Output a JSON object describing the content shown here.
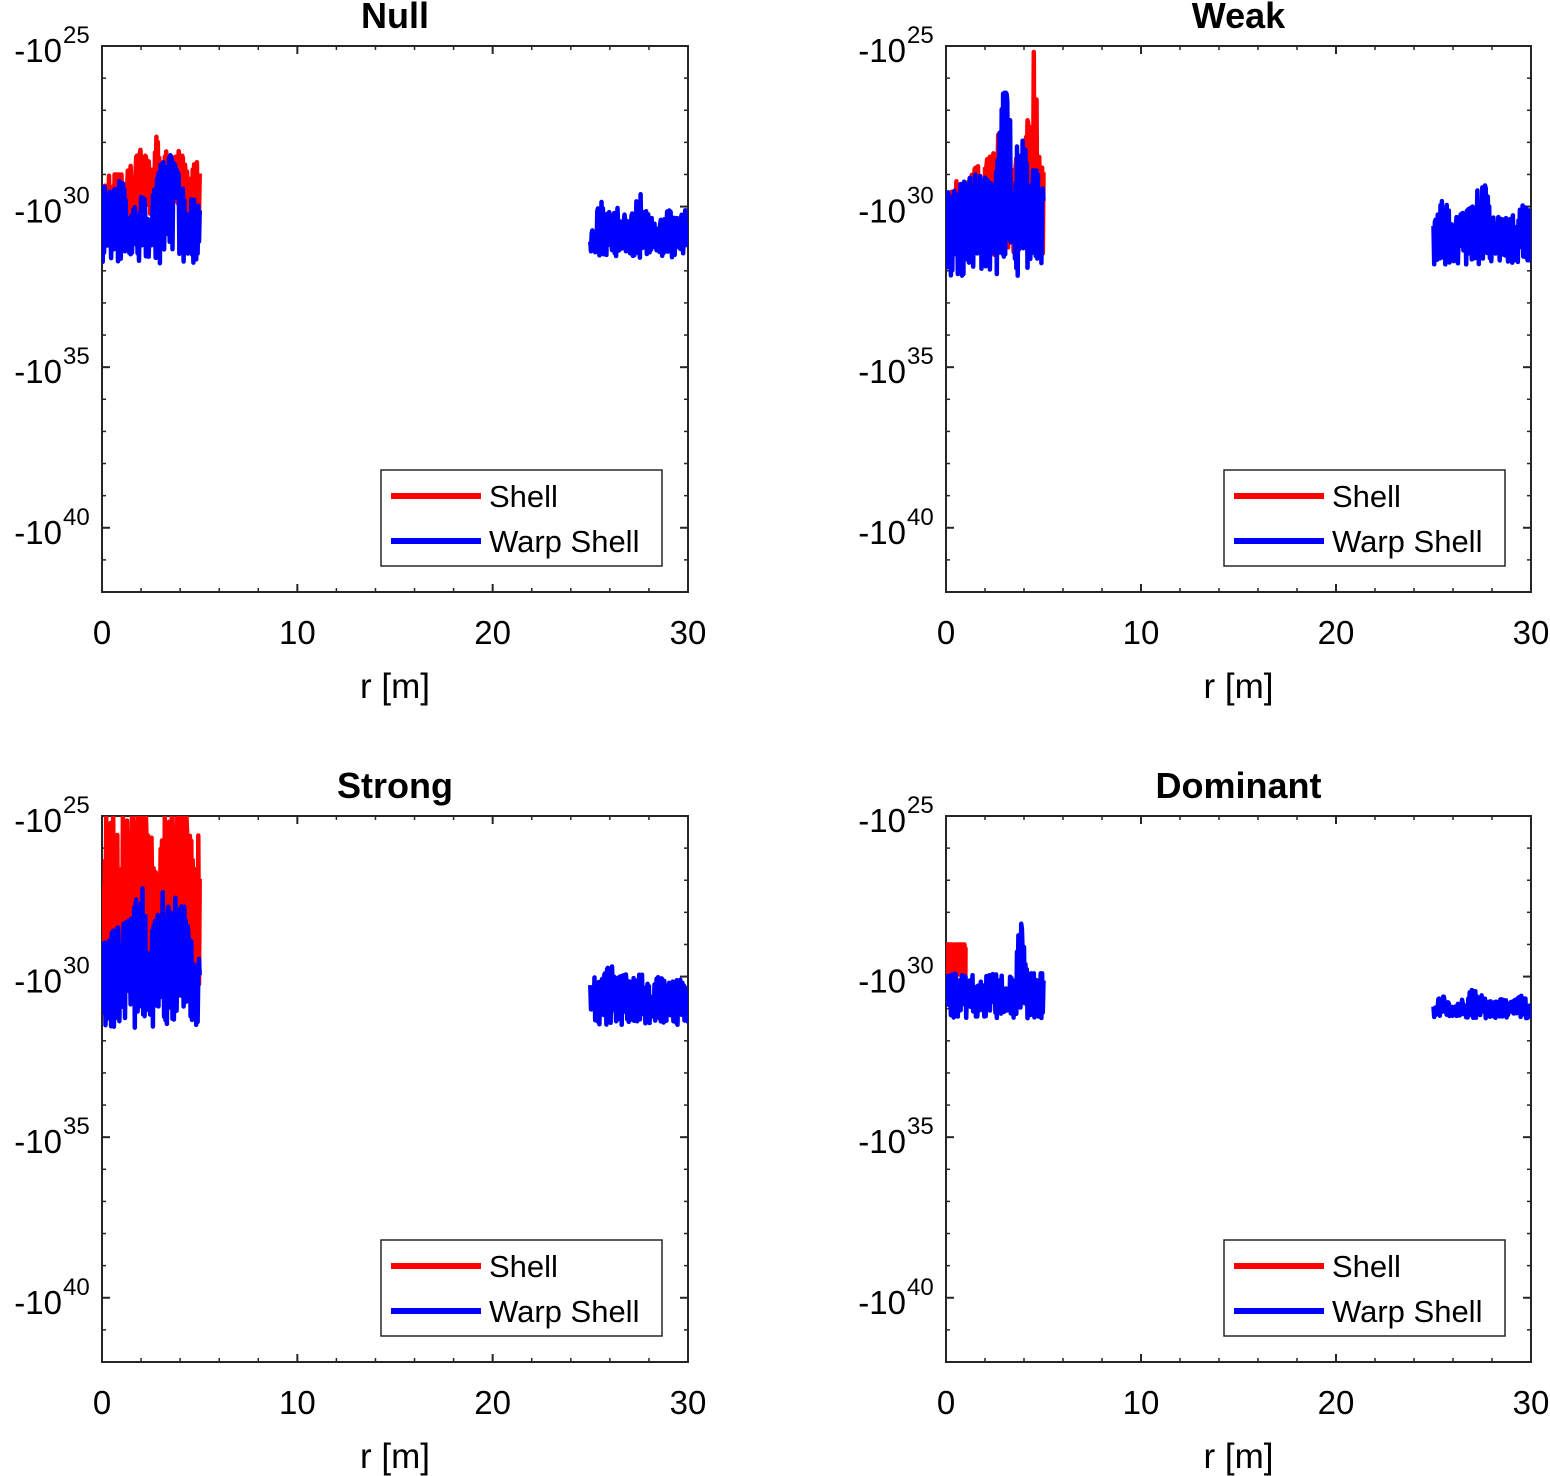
{
  "figure": {
    "layout": "2x2 grid"
  },
  "colors": {
    "shell": "#ff0000",
    "warp_shell": "#0000ff",
    "axis": "#262626"
  },
  "chart_data": [
    {
      "type": "line",
      "title": "Null",
      "xlabel": "r [m]",
      "ylabel": "",
      "xlim": [
        0,
        30
      ],
      "xticks": [
        0,
        10,
        20,
        30
      ],
      "xtick_labels": [
        "0",
        "10",
        "20",
        "30"
      ],
      "yscale": "log (negative values, decreasing downward)",
      "ylim_exponent": [
        25,
        42
      ],
      "yticks": [
        {
          "base": "-10",
          "exp": "25",
          "value_exp": 25
        },
        {
          "base": "-10",
          "exp": "30",
          "value_exp": 30
        },
        {
          "base": "-10",
          "exp": "35",
          "value_exp": 35
        },
        {
          "base": "-10",
          "exp": "40",
          "value_exp": 40
        }
      ],
      "legend": {
        "position": "bottom-right",
        "entries": [
          "Shell",
          "Warp Shell"
        ]
      },
      "series": [
        {
          "name": "Shell",
          "color": "#ff0000",
          "segments": [
            {
              "x_range": [
                0,
                5
              ],
              "envelope_exp": [
                [
                  0.0,
                  29.2
                ],
                [
                  0.4,
                  29.0
                ],
                [
                  0.8,
                  29.0
                ],
                [
                  1.2,
                  29.0
                ],
                [
                  1.6,
                  28.6
                ],
                [
                  2.0,
                  28.2
                ],
                [
                  2.4,
                  28.6
                ],
                [
                  2.8,
                  27.8
                ],
                [
                  3.2,
                  28.2
                ],
                [
                  3.6,
                  28.6
                ],
                [
                  4.0,
                  28.2
                ],
                [
                  4.4,
                  29.0
                ],
                [
                  4.8,
                  28.6
                ]
              ],
              "floor_exp": 30.6
            }
          ]
        },
        {
          "name": "Warp Shell",
          "color": "#0000ff",
          "segments": [
            {
              "x_range": [
                0,
                5
              ],
              "envelope_exp": [
                [
                  0.0,
                  29.3
                ],
                [
                  0.5,
                  29.6
                ],
                [
                  1.0,
                  29.1
                ],
                [
                  1.5,
                  30.2
                ],
                [
                  2.0,
                  29.7
                ],
                [
                  2.5,
                  29.9
                ],
                [
                  3.0,
                  28.7
                ],
                [
                  3.5,
                  28.4
                ],
                [
                  4.0,
                  29.1
                ],
                [
                  4.5,
                  29.6
                ],
                [
                  5.0,
                  29.8
                ]
              ],
              "floor_exp": 31.8
            },
            {
              "x_range": [
                25,
                30
              ],
              "envelope_exp": [
                [
                  25.0,
                  31.0
                ],
                [
                  25.5,
                  29.8
                ],
                [
                  26.0,
                  30.2
                ],
                [
                  26.5,
                  30.0
                ],
                [
                  27.0,
                  30.5
                ],
                [
                  27.5,
                  29.5
                ],
                [
                  28.0,
                  30.3
                ],
                [
                  28.5,
                  30.5
                ],
                [
                  29.0,
                  30.1
                ],
                [
                  29.5,
                  30.4
                ],
                [
                  30.0,
                  30.0
                ]
              ],
              "floor_exp": 31.6
            }
          ]
        }
      ]
    },
    {
      "type": "line",
      "title": "Weak",
      "xlabel": "r [m]",
      "ylabel": "",
      "xlim": [
        0,
        30
      ],
      "xticks": [
        0,
        10,
        20,
        30
      ],
      "xtick_labels": [
        "0",
        "10",
        "20",
        "30"
      ],
      "yscale": "log (negative values, decreasing downward)",
      "ylim_exponent": [
        25,
        42
      ],
      "yticks": [
        {
          "base": "-10",
          "exp": "25",
          "value_exp": 25
        },
        {
          "base": "-10",
          "exp": "30",
          "value_exp": 30
        },
        {
          "base": "-10",
          "exp": "35",
          "value_exp": 35
        },
        {
          "base": "-10",
          "exp": "40",
          "value_exp": 40
        }
      ],
      "legend": {
        "position": "bottom-right",
        "entries": [
          "Shell",
          "Warp Shell"
        ]
      },
      "series": [
        {
          "name": "Shell",
          "color": "#ff0000",
          "segments": [
            {
              "x_range": [
                0,
                5
              ],
              "envelope_exp": [
                [
                  0.0,
                  30.0
                ],
                [
                  0.5,
                  29.2
                ],
                [
                  1.0,
                  29.4
                ],
                [
                  1.5,
                  28.8
                ],
                [
                  2.0,
                  28.6
                ],
                [
                  2.5,
                  28.3
                ],
                [
                  2.8,
                  27.4
                ],
                [
                  3.2,
                  28.6
                ],
                [
                  3.6,
                  28.5
                ],
                [
                  4.0,
                  28.6
                ],
                [
                  4.5,
                  25.0
                ],
                [
                  4.8,
                  28.5
                ]
              ],
              "floor_exp": 31.5
            }
          ]
        },
        {
          "name": "Warp Shell",
          "color": "#0000ff",
          "segments": [
            {
              "x_range": [
                0,
                5
              ],
              "envelope_exp": [
                [
                  0.0,
                  29.6
                ],
                [
                  0.5,
                  29.4
                ],
                [
                  1.0,
                  29.2
                ],
                [
                  1.5,
                  29.0
                ],
                [
                  2.0,
                  29.1
                ],
                [
                  2.5,
                  29.4
                ],
                [
                  3.0,
                  26.0
                ],
                [
                  3.5,
                  28.3
                ],
                [
                  3.9,
                  27.2
                ],
                [
                  4.2,
                  29.0
                ],
                [
                  4.6,
                  28.8
                ],
                [
                  5.0,
                  29.5
                ]
              ],
              "floor_exp": 32.2
            },
            {
              "x_range": [
                25,
                30
              ],
              "envelope_exp": [
                [
                  25.0,
                  30.6
                ],
                [
                  25.5,
                  29.7
                ],
                [
                  26.0,
                  30.4
                ],
                [
                  26.5,
                  30.2
                ],
                [
                  27.0,
                  30.0
                ],
                [
                  27.5,
                  29.0
                ],
                [
                  28.0,
                  30.2
                ],
                [
                  28.5,
                  30.4
                ],
                [
                  29.0,
                  30.3
                ],
                [
                  29.5,
                  29.9
                ],
                [
                  30.0,
                  30.2
                ]
              ],
              "floor_exp": 31.8
            }
          ]
        }
      ]
    },
    {
      "type": "line",
      "title": "Strong",
      "xlabel": "r [m]",
      "ylabel": "",
      "xlim": [
        0,
        30
      ],
      "xticks": [
        0,
        10,
        20,
        30
      ],
      "xtick_labels": [
        "0",
        "10",
        "20",
        "30"
      ],
      "yscale": "log (negative values, decreasing downward)",
      "ylim_exponent": [
        25,
        42
      ],
      "yticks": [
        {
          "base": "-10",
          "exp": "25",
          "value_exp": 25
        },
        {
          "base": "-10",
          "exp": "30",
          "value_exp": 30
        },
        {
          "base": "-10",
          "exp": "35",
          "value_exp": 35
        },
        {
          "base": "-10",
          "exp": "40",
          "value_exp": 40
        }
      ],
      "legend": {
        "position": "bottom-right",
        "entries": [
          "Shell",
          "Warp Shell"
        ]
      },
      "series": [
        {
          "name": "Shell",
          "color": "#ff0000",
          "segments": [
            {
              "x_range": [
                0,
                5
              ],
              "envelope_exp": [
                [
                  0.0,
                  25.0
                ],
                [
                  0.4,
                  25.0
                ],
                [
                  0.8,
                  25.0
                ],
                [
                  1.2,
                  25.0
                ],
                [
                  1.6,
                  25.0
                ],
                [
                  2.0,
                  25.0
                ],
                [
                  2.4,
                  25.0
                ],
                [
                  2.8,
                  27.0
                ],
                [
                  3.2,
                  25.0
                ],
                [
                  3.6,
                  25.0
                ],
                [
                  4.0,
                  25.0
                ],
                [
                  4.4,
                  25.0
                ],
                [
                  4.8,
                  25.0
                ]
              ],
              "floor_exp": 30.5
            }
          ]
        },
        {
          "name": "Warp Shell",
          "color": "#0000ff",
          "segments": [
            {
              "x_range": [
                0,
                5
              ],
              "envelope_exp": [
                [
                  0.0,
                  29.0
                ],
                [
                  0.5,
                  28.6
                ],
                [
                  1.0,
                  28.4
                ],
                [
                  1.5,
                  28.2
                ],
                [
                  2.0,
                  27.0
                ],
                [
                  2.5,
                  28.8
                ],
                [
                  3.0,
                  27.2
                ],
                [
                  3.5,
                  28.0
                ],
                [
                  4.0,
                  27.1
                ],
                [
                  4.5,
                  28.8
                ],
                [
                  5.0,
                  29.5
                ]
              ],
              "floor_exp": 31.6
            },
            {
              "x_range": [
                25,
                30
              ],
              "envelope_exp": [
                [
                  25.0,
                  29.9
                ],
                [
                  25.5,
                  30.2
                ],
                [
                  26.0,
                  29.6
                ],
                [
                  26.5,
                  30.0
                ],
                [
                  27.0,
                  29.9
                ],
                [
                  27.5,
                  29.8
                ],
                [
                  28.0,
                  30.3
                ],
                [
                  28.5,
                  30.0
                ],
                [
                  29.0,
                  30.2
                ],
                [
                  29.5,
                  30.1
                ],
                [
                  30.0,
                  30.1
                ]
              ],
              "floor_exp": 31.5
            }
          ]
        }
      ]
    },
    {
      "type": "line",
      "title": "Dominant",
      "xlabel": "r [m]",
      "ylabel": "",
      "xlim": [
        0,
        30
      ],
      "xticks": [
        0,
        10,
        20,
        30
      ],
      "xtick_labels": [
        "0",
        "10",
        "20",
        "30"
      ],
      "yscale": "log (negative values, decreasing downward)",
      "ylim_exponent": [
        25,
        42
      ],
      "yticks": [
        {
          "base": "-10",
          "exp": "25",
          "value_exp": 25
        },
        {
          "base": "-10",
          "exp": "30",
          "value_exp": 30
        },
        {
          "base": "-10",
          "exp": "35",
          "value_exp": 35
        },
        {
          "base": "-10",
          "exp": "40",
          "value_exp": 40
        }
      ],
      "legend": {
        "position": "bottom-right",
        "entries": [
          "Shell",
          "Warp Shell"
        ]
      },
      "series": [
        {
          "name": "Shell",
          "color": "#ff0000",
          "segments": [
            {
              "x_range": [
                0,
                1
              ],
              "envelope_exp": [
                [
                  0.3,
                  29.0
                ],
                [
                  0.5,
                  29.0
                ]
              ],
              "floor_exp": 30.0
            }
          ]
        },
        {
          "name": "Warp Shell",
          "color": "#0000ff",
          "segments": [
            {
              "x_range": [
                0,
                5
              ],
              "envelope_exp": [
                [
                  0.0,
                  30.0
                ],
                [
                  0.5,
                  29.9
                ],
                [
                  1.0,
                  30.0
                ],
                [
                  1.5,
                  29.9
                ],
                [
                  2.0,
                  30.0
                ],
                [
                  2.5,
                  29.9
                ],
                [
                  3.0,
                  30.0
                ],
                [
                  3.5,
                  29.9
                ],
                [
                  3.8,
                  28.1
                ],
                [
                  4.2,
                  29.9
                ],
                [
                  4.6,
                  29.9
                ],
                [
                  5.0,
                  29.9
                ]
              ],
              "floor_exp": 31.3
            },
            {
              "x_range": [
                25,
                30
              ],
              "envelope_exp": [
                [
                  25.0,
                  30.8
                ],
                [
                  25.5,
                  30.6
                ],
                [
                  26.0,
                  31.0
                ],
                [
                  26.5,
                  30.7
                ],
                [
                  27.0,
                  30.4
                ],
                [
                  27.5,
                  30.6
                ],
                [
                  28.0,
                  30.8
                ],
                [
                  28.5,
                  30.7
                ],
                [
                  29.0,
                  30.8
                ],
                [
                  29.5,
                  30.6
                ],
                [
                  30.0,
                  30.8
                ]
              ],
              "floor_exp": 31.3
            }
          ]
        }
      ]
    }
  ]
}
